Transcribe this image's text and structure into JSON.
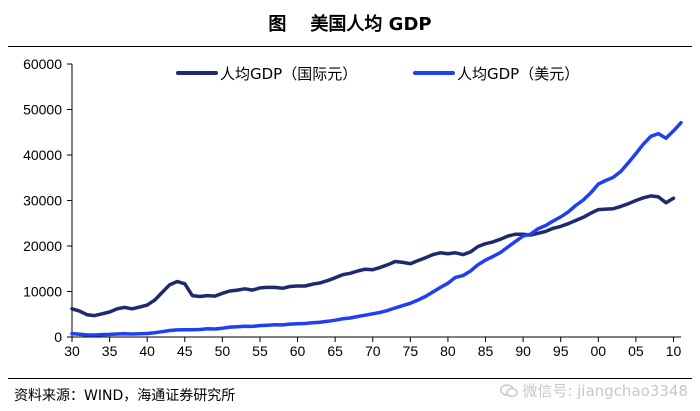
{
  "header": {
    "figure_label": "图",
    "title": "美国人均 GDP"
  },
  "source_note": "资料来源：WIND，海通证券研究所",
  "watermark": {
    "icon": "wechat-icon",
    "text": "微信号: jiangchao3348"
  },
  "colors": {
    "intl": "#1f2a6e",
    "usd": "#1f3ff5",
    "axis": "#000000"
  },
  "chart_data": {
    "type": "line",
    "title": "美国人均 GDP",
    "xlabel": "",
    "ylabel": "",
    "xlim": [
      1930,
      2011
    ],
    "ylim": [
      0,
      60000
    ],
    "yticks": [
      0,
      10000,
      20000,
      30000,
      40000,
      50000,
      60000
    ],
    "xticks": [
      1930,
      1935,
      1940,
      1945,
      1950,
      1955,
      1960,
      1965,
      1970,
      1975,
      1980,
      1985,
      1990,
      1995,
      2000,
      2005,
      2010
    ],
    "xtick_labels": [
      "30",
      "35",
      "40",
      "45",
      "50",
      "55",
      "60",
      "65",
      "70",
      "75",
      "80",
      "85",
      "90",
      "95",
      "00",
      "05",
      "10"
    ],
    "legend_position": "top",
    "series": [
      {
        "name": "人均GDP（国际元）",
        "color": "#1f2a6e",
        "x": [
          1930,
          1931,
          1932,
          1933,
          1934,
          1935,
          1936,
          1937,
          1938,
          1939,
          1940,
          1941,
          1942,
          1943,
          1944,
          1945,
          1946,
          1947,
          1948,
          1949,
          1950,
          1951,
          1952,
          1953,
          1954,
          1955,
          1956,
          1957,
          1958,
          1959,
          1960,
          1961,
          1962,
          1963,
          1964,
          1965,
          1966,
          1967,
          1968,
          1969,
          1970,
          1971,
          1972,
          1973,
          1974,
          1975,
          1976,
          1977,
          1978,
          1979,
          1980,
          1981,
          1982,
          1983,
          1984,
          1985,
          1986,
          1987,
          1988,
          1989,
          1990,
          1991,
          1992,
          1993,
          1994,
          1995,
          1996,
          1997,
          1998,
          1999,
          2000,
          2001,
          2002,
          2003,
          2004,
          2005,
          2006,
          2007,
          2008,
          2009,
          2010
        ],
        "values": [
          6200,
          5700,
          4900,
          4700,
          5100,
          5500,
          6200,
          6500,
          6200,
          6600,
          7000,
          8100,
          9800,
          11500,
          12200,
          11700,
          9100,
          8900,
          9100,
          9000,
          9600,
          10100,
          10300,
          10600,
          10300,
          10800,
          10900,
          10900,
          10700,
          11100,
          11200,
          11200,
          11600,
          11900,
          12400,
          13000,
          13700,
          14000,
          14500,
          14900,
          14800,
          15300,
          15900,
          16600,
          16400,
          16100,
          16800,
          17400,
          18100,
          18500,
          18300,
          18500,
          18100,
          18700,
          19900,
          20500,
          20900,
          21500,
          22200,
          22600,
          22600,
          22400,
          22800,
          23200,
          23900,
          24300,
          24900,
          25600,
          26300,
          27200,
          28000,
          28100,
          28200,
          28700,
          29300,
          30000,
          30600,
          31000,
          30800,
          29500,
          30500
        ]
      },
      {
        "name": "人均GDP（美元）",
        "color": "#1f3ff5",
        "x": [
          1930,
          1931,
          1932,
          1933,
          1934,
          1935,
          1936,
          1937,
          1938,
          1939,
          1940,
          1941,
          1942,
          1943,
          1944,
          1945,
          1946,
          1947,
          1948,
          1949,
          1950,
          1951,
          1952,
          1953,
          1954,
          1955,
          1956,
          1957,
          1958,
          1959,
          1960,
          1961,
          1962,
          1963,
          1964,
          1965,
          1966,
          1967,
          1968,
          1969,
          1970,
          1971,
          1972,
          1973,
          1974,
          1975,
          1976,
          1977,
          1978,
          1979,
          1980,
          1981,
          1982,
          1983,
          1984,
          1985,
          1986,
          1987,
          1988,
          1989,
          1990,
          1991,
          1992,
          1993,
          1994,
          1995,
          1996,
          1997,
          1998,
          1999,
          2000,
          2001,
          2002,
          2003,
          2004,
          2005,
          2006,
          2007,
          2008,
          2009,
          2010,
          2011
        ],
        "values": [
          740,
          620,
          470,
          450,
          520,
          580,
          650,
          710,
          660,
          700,
          770,
          950,
          1170,
          1420,
          1560,
          1580,
          1590,
          1640,
          1800,
          1760,
          1940,
          2170,
          2270,
          2370,
          2340,
          2500,
          2590,
          2680,
          2670,
          2840,
          2910,
          2960,
          3140,
          3250,
          3450,
          3700,
          4000,
          4180,
          4500,
          4800,
          5100,
          5400,
          5850,
          6400,
          6900,
          7400,
          8100,
          8900,
          9900,
          10900,
          11800,
          13100,
          13500,
          14500,
          15900,
          16900,
          17700,
          18600,
          19800,
          21000,
          22200,
          22600,
          23800,
          24500,
          25500,
          26400,
          27500,
          28900,
          30100,
          31700,
          33600,
          34400,
          35100,
          36400,
          38300,
          40300,
          42400,
          44100,
          44700,
          43700,
          45300,
          47100
        ]
      }
    ]
  }
}
